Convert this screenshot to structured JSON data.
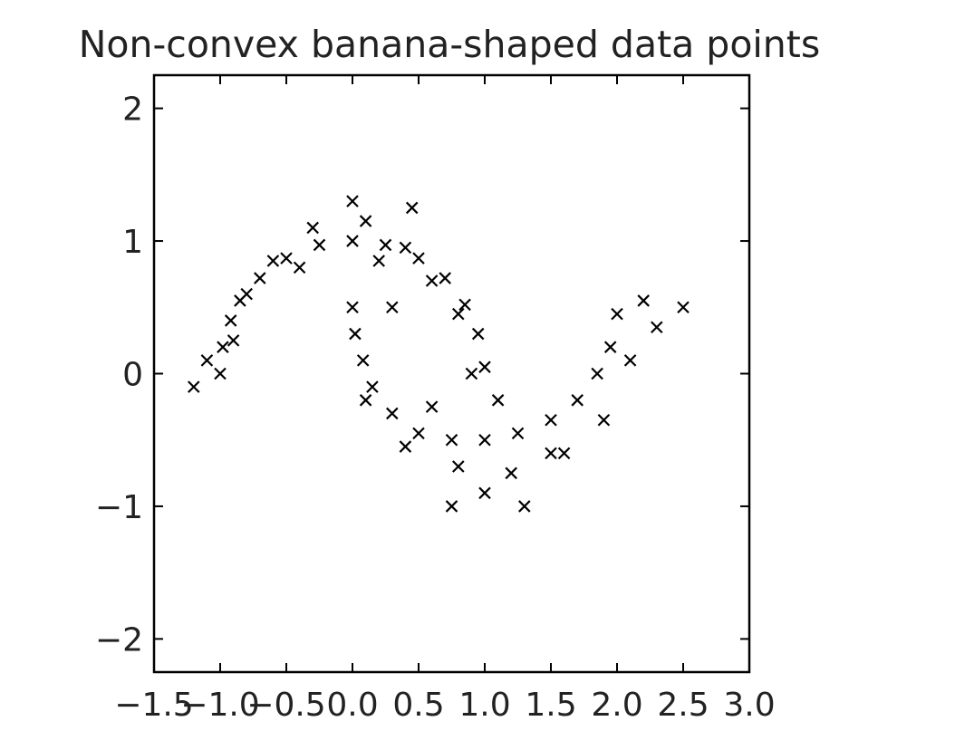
{
  "chart_data": {
    "type": "scatter",
    "title": "Non-convex banana-shaped data points",
    "xlabel": "",
    "ylabel": "",
    "xlim": [
      -1.5,
      3.0
    ],
    "ylim": [
      -2.25,
      2.25
    ],
    "xticks": [
      -1.5,
      -1.0,
      -0.5,
      0.0,
      0.5,
      1.0,
      1.5,
      2.0,
      2.5,
      3.0
    ],
    "xtick_labels": [
      "−1.5",
      "−1.0",
      "−0.5",
      "0.0",
      "0.5",
      "1.0",
      "1.5",
      "2.0",
      "2.5",
      "3.0"
    ],
    "yticks": [
      -2,
      -1,
      0,
      1,
      2
    ],
    "ytick_labels": [
      "−2",
      "−1",
      "0",
      "1",
      "2"
    ],
    "grid": false,
    "marker": "x",
    "marker_color": "#000000",
    "series": [
      {
        "points": [
          [
            -1.0,
            0.0
          ],
          [
            -0.98,
            0.2
          ],
          [
            -0.92,
            0.4
          ],
          [
            -0.85,
            0.55
          ],
          [
            -0.7,
            0.72
          ],
          [
            -0.5,
            0.87
          ],
          [
            -0.25,
            0.97
          ],
          [
            0.0,
            1.0
          ],
          [
            0.25,
            0.97
          ],
          [
            0.5,
            0.87
          ],
          [
            0.7,
            0.72
          ],
          [
            0.85,
            0.52
          ],
          [
            0.95,
            0.3
          ],
          [
            1.0,
            0.05
          ],
          [
            -1.1,
            0.1
          ],
          [
            -0.9,
            0.25
          ],
          [
            -0.6,
            0.85
          ],
          [
            -0.3,
            1.1
          ],
          [
            0.1,
            1.15
          ],
          [
            0.4,
            0.95
          ],
          [
            0.8,
            0.45
          ],
          [
            0.9,
            0.0
          ],
          [
            -1.2,
            -0.1
          ],
          [
            1.1,
            -0.2
          ],
          [
            -0.4,
            0.8
          ],
          [
            0.2,
            0.85
          ],
          [
            0.6,
            0.7
          ],
          [
            -0.8,
            0.6
          ],
          [
            0.0,
            1.3
          ],
          [
            0.45,
            1.25
          ],
          [
            0.0,
            0.5
          ],
          [
            0.02,
            0.3
          ],
          [
            0.08,
            0.1
          ],
          [
            0.15,
            -0.1
          ],
          [
            0.3,
            -0.3
          ],
          [
            0.5,
            -0.45
          ],
          [
            0.75,
            -0.5
          ],
          [
            1.0,
            -0.5
          ],
          [
            1.25,
            -0.45
          ],
          [
            1.5,
            -0.35
          ],
          [
            1.7,
            -0.2
          ],
          [
            1.85,
            0.0
          ],
          [
            1.95,
            0.2
          ],
          [
            2.0,
            0.45
          ],
          [
            0.1,
            -0.2
          ],
          [
            0.4,
            -0.55
          ],
          [
            0.8,
            -0.7
          ],
          [
            1.2,
            -0.75
          ],
          [
            1.6,
            -0.6
          ],
          [
            1.9,
            -0.35
          ],
          [
            2.1,
            0.1
          ],
          [
            2.3,
            0.35
          ],
          [
            0.3,
            0.5
          ],
          [
            0.6,
            -0.25
          ],
          [
            1.0,
            -0.9
          ],
          [
            1.3,
            -1.0
          ],
          [
            0.75,
            -1.0
          ],
          [
            2.5,
            0.5
          ],
          [
            2.2,
            0.55
          ],
          [
            1.5,
            -0.6
          ]
        ]
      }
    ]
  },
  "colors": {
    "background": "#ffffff",
    "axes": "#000000",
    "text": "#222222",
    "marker": "#000000"
  }
}
